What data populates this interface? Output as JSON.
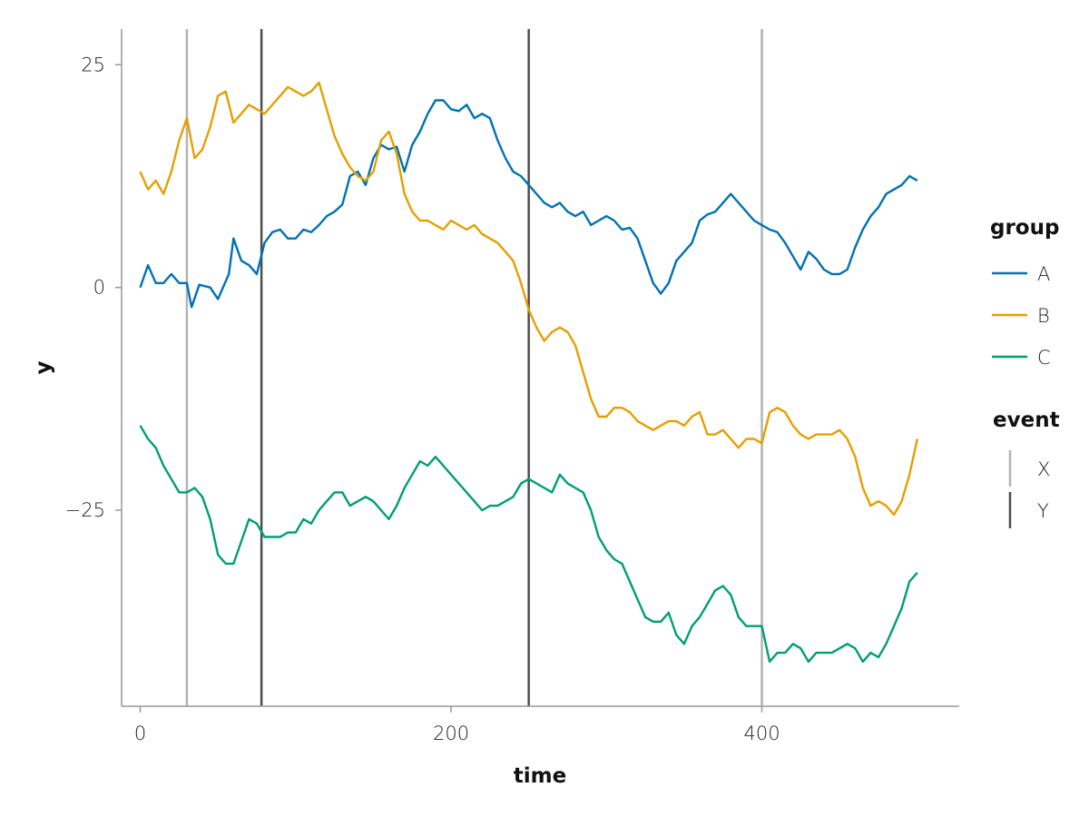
{
  "chart_data": {
    "type": "line",
    "xlabel": "time",
    "ylabel": "y",
    "xlim": [
      -12,
      527
    ],
    "ylim": [
      -47,
      29
    ],
    "x_ticks": [
      0,
      200,
      400
    ],
    "y_ticks": [
      25,
      0,
      -25
    ],
    "x_tick_labels": [
      "0",
      "200",
      "400"
    ],
    "y_tick_labels": [
      "25",
      "0",
      "−25"
    ],
    "grid": false,
    "legend_position": "right",
    "legend": {
      "group_title": "group",
      "event_title": "event"
    },
    "series": [
      {
        "name": "A",
        "color": "#0072B2",
        "x": [
          0,
          5,
          10,
          15,
          20,
          25,
          30,
          33,
          38,
          45,
          50,
          57,
          60,
          65,
          70,
          75,
          80,
          85,
          90,
          95,
          100,
          105,
          110,
          115,
          120,
          125,
          130,
          135,
          140,
          145,
          150,
          155,
          160,
          165,
          170,
          175,
          180,
          185,
          190,
          195,
          200,
          205,
          210,
          215,
          220,
          225,
          230,
          235,
          240,
          245,
          250,
          255,
          260,
          265,
          270,
          275,
          280,
          285,
          290,
          295,
          300,
          305,
          310,
          315,
          320,
          325,
          330,
          335,
          340,
          345,
          350,
          355,
          360,
          365,
          370,
          375,
          380,
          385,
          390,
          395,
          400,
          405,
          410,
          415,
          420,
          425,
          430,
          435,
          440,
          445,
          450,
          455,
          460,
          465,
          470,
          475,
          480,
          485,
          490,
          495,
          500
        ],
        "y": [
          0,
          2.5,
          0.5,
          0.5,
          1.5,
          0.5,
          0.5,
          -2.2,
          0.3,
          0,
          -1.3,
          1.5,
          5.5,
          3,
          2.5,
          1.5,
          5,
          6.2,
          6.5,
          5.5,
          5.5,
          6.5,
          6.2,
          7,
          8,
          8.5,
          9.3,
          12.5,
          13,
          11.5,
          14.5,
          16,
          15.5,
          15.8,
          13,
          16,
          17.5,
          19.5,
          21,
          21,
          20,
          19.8,
          20.5,
          19,
          19.5,
          19,
          16.5,
          14.5,
          13,
          12.5,
          11.5,
          10.5,
          9.5,
          9,
          9.5,
          8.5,
          8,
          8.5,
          7,
          7.5,
          8,
          7.5,
          6.5,
          6.7,
          5.5,
          3,
          0.5,
          -0.7,
          0.5,
          3,
          4,
          5,
          7.5,
          8.2,
          8.5,
          9.5,
          10.5,
          9.5,
          8.5,
          7.5,
          7,
          6.5,
          6.2,
          5,
          3.5,
          2,
          4,
          3.2,
          2,
          1.5,
          1.5,
          2,
          4.5,
          6.5,
          8,
          9,
          10.5,
          11,
          11.5,
          12.5,
          12
        ]
      },
      {
        "name": "B",
        "color": "#E69F00",
        "x": [
          0,
          5,
          10,
          15,
          20,
          25,
          30,
          35,
          40,
          45,
          50,
          55,
          60,
          65,
          70,
          75,
          80,
          85,
          90,
          95,
          100,
          105,
          110,
          115,
          120,
          125,
          130,
          135,
          140,
          145,
          150,
          155,
          160,
          165,
          170,
          175,
          180,
          185,
          190,
          195,
          200,
          205,
          210,
          215,
          220,
          225,
          230,
          235,
          240,
          245,
          250,
          255,
          260,
          265,
          270,
          275,
          280,
          285,
          290,
          295,
          300,
          305,
          310,
          315,
          320,
          325,
          330,
          335,
          340,
          345,
          350,
          355,
          360,
          365,
          370,
          375,
          380,
          385,
          390,
          395,
          400,
          405,
          410,
          415,
          420,
          425,
          430,
          435,
          440,
          445,
          450,
          455,
          460,
          465,
          470,
          475,
          480,
          485,
          490,
          495,
          500
        ],
        "y": [
          13,
          11,
          12,
          10.5,
          13,
          16.5,
          19,
          14.5,
          15.5,
          18,
          21.5,
          22,
          18.5,
          19.5,
          20.5,
          20,
          19.5,
          20.5,
          21.5,
          22.5,
          22,
          21.5,
          22,
          23,
          20,
          17,
          15,
          13.5,
          12.5,
          12,
          13,
          16.5,
          17.5,
          15,
          10.5,
          8.5,
          7.5,
          7.5,
          7,
          6.5,
          7.5,
          7,
          6.5,
          7,
          6,
          5.5,
          5,
          4,
          3,
          0.5,
          -2.5,
          -4.5,
          -6,
          -5,
          -4.5,
          -5,
          -6.5,
          -9.5,
          -12.5,
          -14.5,
          -14.5,
          -13.5,
          -13.5,
          -14,
          -15,
          -15.5,
          -16,
          -15.5,
          -15,
          -15,
          -15.5,
          -14.5,
          -14,
          -16.5,
          -16.5,
          -16,
          -17,
          -18,
          -17,
          -17,
          -17.5,
          -14,
          -13.5,
          -14,
          -15.5,
          -16.5,
          -17,
          -16.5,
          -16.5,
          -16.5,
          -16,
          -17,
          -19,
          -22.5,
          -24.5,
          -24,
          -24.5,
          -25.5,
          -24,
          -21,
          -17
        ]
      },
      {
        "name": "C",
        "color": "#009E73",
        "x": [
          0,
          5,
          10,
          15,
          20,
          25,
          30,
          35,
          40,
          45,
          50,
          55,
          60,
          65,
          70,
          75,
          80,
          85,
          90,
          95,
          100,
          105,
          110,
          115,
          120,
          125,
          130,
          135,
          140,
          145,
          150,
          155,
          160,
          165,
          170,
          175,
          180,
          185,
          190,
          195,
          200,
          205,
          210,
          215,
          220,
          225,
          230,
          235,
          240,
          245,
          250,
          255,
          260,
          265,
          270,
          275,
          280,
          285,
          290,
          295,
          300,
          305,
          310,
          315,
          320,
          325,
          330,
          335,
          340,
          345,
          350,
          355,
          360,
          365,
          370,
          375,
          380,
          385,
          390,
          395,
          400,
          405,
          410,
          415,
          420,
          425,
          430,
          435,
          440,
          445,
          450,
          455,
          460,
          465,
          470,
          475,
          480,
          485,
          490,
          495,
          500
        ],
        "y": [
          -15.5,
          -17,
          -18,
          -20,
          -21.5,
          -23,
          -23,
          -22.5,
          -23.5,
          -26,
          -30,
          -31,
          -31,
          -28.5,
          -26,
          -26.5,
          -28,
          -28,
          -28,
          -27.5,
          -27.5,
          -26,
          -26.5,
          -25,
          -24,
          -23,
          -23,
          -24.5,
          -24,
          -23.5,
          -24,
          -25,
          -26,
          -24.5,
          -22.5,
          -21,
          -19.5,
          -20,
          -19,
          -20,
          -21,
          -22,
          -23,
          -24,
          -25,
          -24.5,
          -24.5,
          -24,
          -23.5,
          -22,
          -21.5,
          -22,
          -22.5,
          -23,
          -21,
          -22,
          -22.5,
          -23,
          -25,
          -28,
          -29.5,
          -30.5,
          -31,
          -33,
          -35,
          -37,
          -37.5,
          -37.5,
          -36.5,
          -39,
          -40,
          -38,
          -37,
          -35.5,
          -34,
          -33.5,
          -34.5,
          -37,
          -38,
          -38,
          -38,
          -42,
          -41,
          -41,
          -40,
          -40.5,
          -42,
          -41,
          -41,
          -41,
          -40.5,
          -40,
          -40.5,
          -42,
          -41,
          -41.5,
          -40,
          -38,
          -36,
          -33,
          -32
        ]
      }
    ],
    "events": [
      {
        "label": "X",
        "color": "#b3b3b3",
        "x": [
          30,
          400
        ]
      },
      {
        "label": "Y",
        "color": "#4d4d4d",
        "x": [
          78,
          250
        ]
      }
    ]
  }
}
